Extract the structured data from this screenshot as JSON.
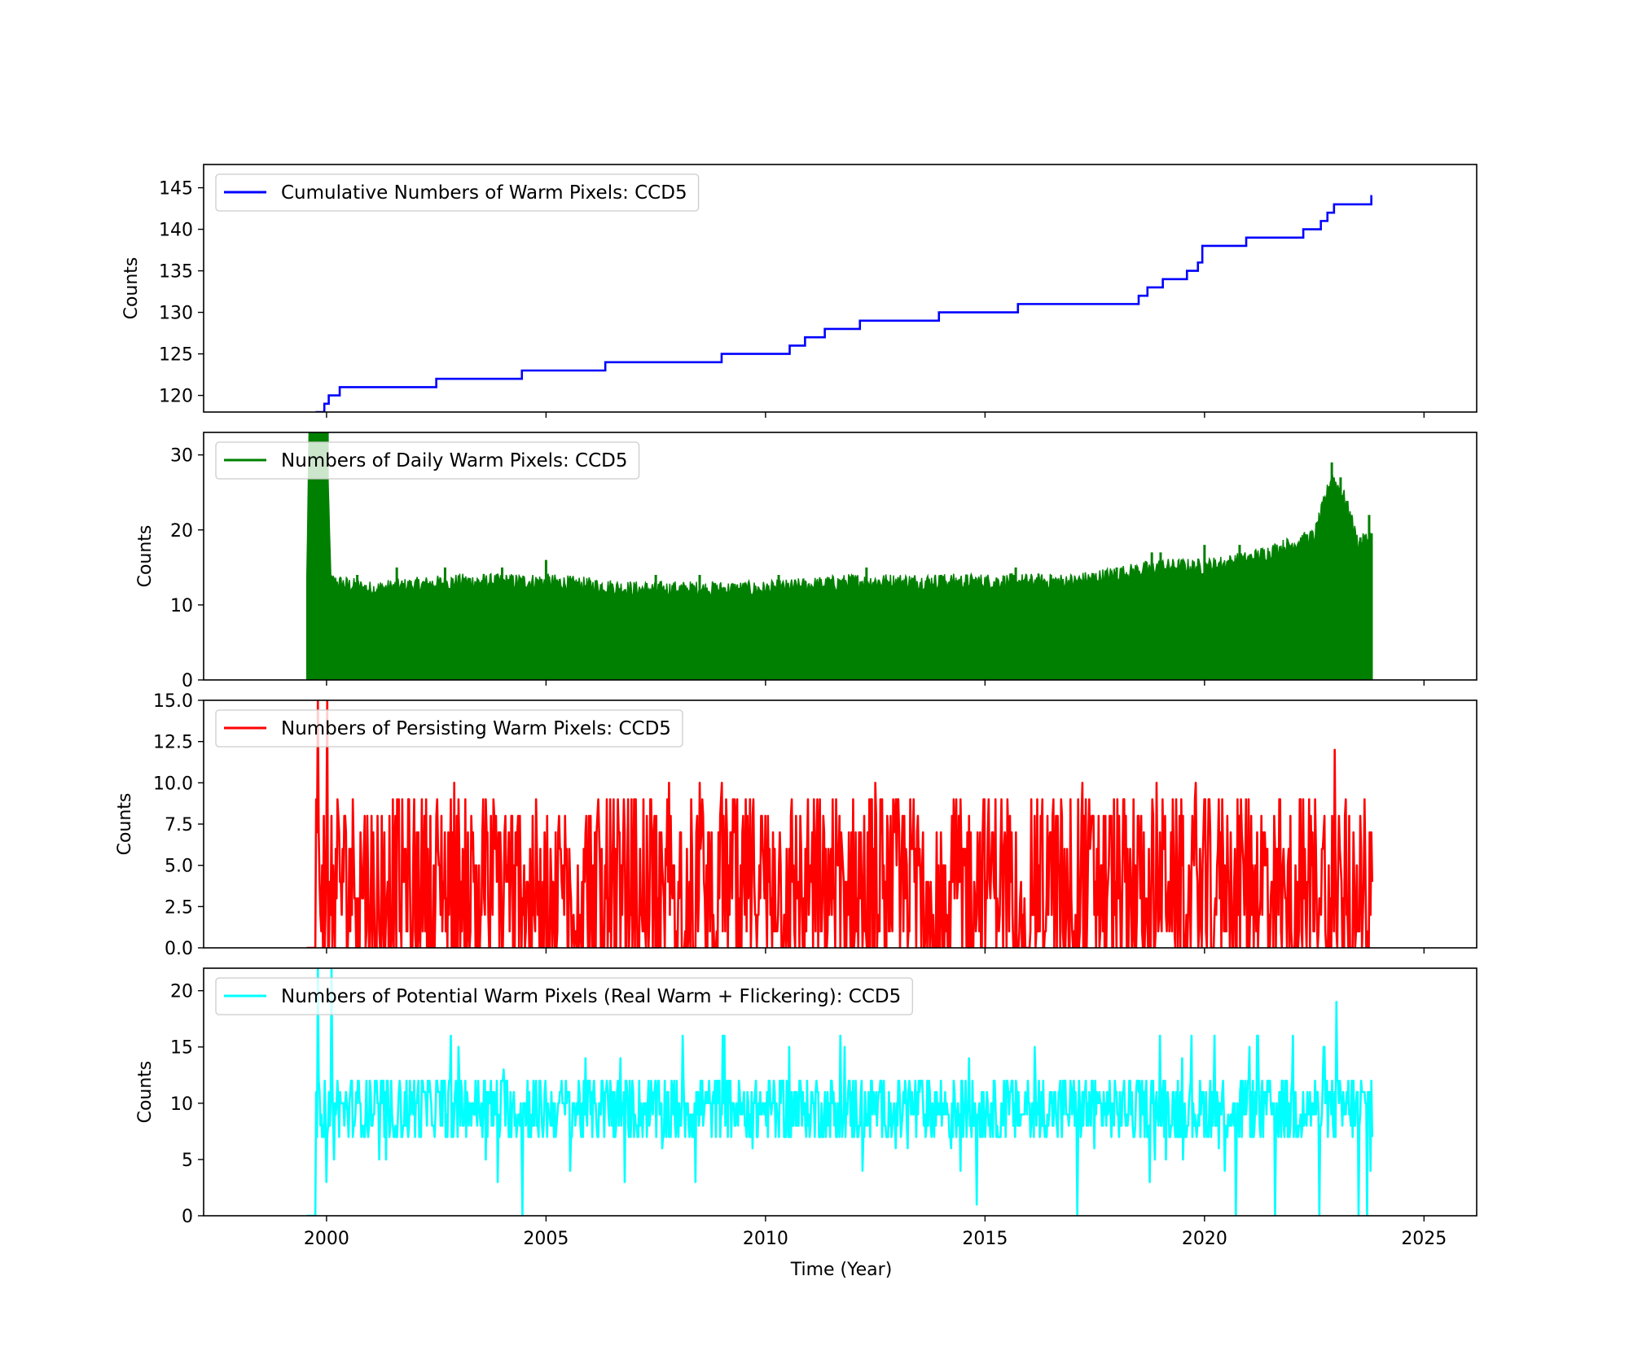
{
  "xlabel": "Time (Year)",
  "x_ticks": [
    2000,
    2005,
    2010,
    2015,
    2020,
    2025
  ],
  "x_range": [
    1997.2,
    2026.2
  ],
  "chart_data": [
    {
      "type": "line",
      "legend": "Cumulative Numbers of Warm Pixels: CCD5",
      "legend_loc": "upper-left",
      "color": "#0000ff",
      "ylabel": "Counts",
      "ylim": [
        118,
        147.8
      ],
      "y_ticks": [
        120,
        125,
        130,
        135,
        140,
        145
      ],
      "y_tick_labels": [
        "120",
        "125",
        "130",
        "135",
        "140",
        "145"
      ],
      "steps": [
        [
          1999.75,
          118
        ],
        [
          1999.95,
          119
        ],
        [
          2000.05,
          120
        ],
        [
          2000.3,
          121
        ],
        [
          2002.5,
          122
        ],
        [
          2004.45,
          123
        ],
        [
          2006.35,
          124
        ],
        [
          2009.0,
          125
        ],
        [
          2010.55,
          126
        ],
        [
          2010.9,
          127
        ],
        [
          2011.35,
          128
        ],
        [
          2012.15,
          129
        ],
        [
          2013.95,
          130
        ],
        [
          2015.75,
          131
        ],
        [
          2018.5,
          132
        ],
        [
          2018.7,
          133
        ],
        [
          2019.05,
          134
        ],
        [
          2019.6,
          135
        ],
        [
          2019.85,
          136
        ],
        [
          2019.95,
          138
        ],
        [
          2020.95,
          139
        ],
        [
          2022.25,
          140
        ],
        [
          2022.65,
          141
        ],
        [
          2022.8,
          142
        ],
        [
          2022.95,
          143
        ],
        [
          2023.8,
          144
        ]
      ],
      "x_end": 2023.82
    },
    {
      "type": "area",
      "legend": "Numbers of Daily Warm Pixels: CCD5",
      "legend_loc": "upper-left",
      "color": "#008000",
      "ylabel": "Counts",
      "ylim": [
        0,
        33
      ],
      "y_ticks": [
        0,
        10,
        20,
        30
      ],
      "y_tick_labels": [
        "0",
        "10",
        "20",
        "30"
      ],
      "x_start": 1999.55,
      "x_end": 2023.82,
      "envelope": [
        [
          1999.55,
          14
        ],
        [
          1999.6,
          33
        ],
        [
          1999.8,
          33
        ],
        [
          2000.0,
          33
        ],
        [
          2000.1,
          14
        ],
        [
          2001.0,
          13
        ],
        [
          2003.0,
          14
        ],
        [
          2005.0,
          14
        ],
        [
          2007.0,
          13
        ],
        [
          2010.0,
          13
        ],
        [
          2012.0,
          14
        ],
        [
          2015.0,
          14
        ],
        [
          2017.0,
          14
        ],
        [
          2018.0,
          15
        ],
        [
          2019.0,
          16
        ],
        [
          2020.0,
          16
        ],
        [
          2021.0,
          17
        ],
        [
          2022.0,
          19
        ],
        [
          2022.5,
          20
        ],
        [
          2022.9,
          28
        ],
        [
          2023.2,
          25
        ],
        [
          2023.5,
          19
        ],
        [
          2023.82,
          20
        ]
      ],
      "spikes": [
        [
          2000.7,
          14
        ],
        [
          2001.6,
          15
        ],
        [
          2002.7,
          15
        ],
        [
          2004.0,
          15
        ],
        [
          2005.0,
          16
        ],
        [
          2007.5,
          14
        ],
        [
          2008.5,
          14
        ],
        [
          2010.3,
          14
        ],
        [
          2012.3,
          15
        ],
        [
          2014.0,
          14
        ],
        [
          2015.7,
          15
        ],
        [
          2016.5,
          14
        ],
        [
          2018.0,
          15
        ],
        [
          2018.8,
          17
        ],
        [
          2019.0,
          17
        ],
        [
          2019.5,
          16
        ],
        [
          2020.0,
          18
        ],
        [
          2020.8,
          18
        ],
        [
          2021.3,
          17
        ],
        [
          2021.8,
          17
        ],
        [
          2022.2,
          19
        ],
        [
          2022.6,
          20
        ],
        [
          2022.9,
          29
        ],
        [
          2023.1,
          27
        ],
        [
          2023.35,
          22
        ],
        [
          2023.55,
          19
        ],
        [
          2023.75,
          22
        ]
      ]
    },
    {
      "type": "line",
      "legend": "Numbers of Persisting Warm Pixels: CCD5",
      "legend_loc": "upper-left",
      "color": "#ff0000",
      "ylabel": "Counts",
      "ylim": [
        0,
        15
      ],
      "y_ticks": [
        0,
        2.5,
        5,
        7.5,
        10,
        12.5,
        15
      ],
      "y_tick_labels": [
        "0.0",
        "2.5",
        "5.0",
        "7.5",
        "10.0",
        "12.5",
        "15.0"
      ],
      "x_start": 1999.55,
      "x_end": 2023.82,
      "mean": 4.5,
      "spread": 5,
      "peaks": [
        [
          1999.8,
          15
        ],
        [
          2000.0,
          15
        ],
        [
          2002.9,
          10
        ],
        [
          2003.8,
          9
        ],
        [
          2007.8,
          10
        ],
        [
          2008.5,
          10
        ],
        [
          2009.0,
          10
        ],
        [
          2012.5,
          10
        ],
        [
          2017.2,
          10
        ],
        [
          2018.9,
          10
        ],
        [
          2019.8,
          10
        ],
        [
          2021.0,
          9
        ],
        [
          2022.95,
          12
        ],
        [
          2023.2,
          9
        ],
        [
          2023.8,
          7
        ]
      ]
    },
    {
      "type": "line",
      "legend": "Numbers of Potential Warm Pixels (Real Warm + Flickering): CCD5",
      "legend_loc": "upper-left",
      "color": "#00ffff",
      "ylabel": "Counts",
      "ylim": [
        0,
        22
      ],
      "y_ticks": [
        0,
        5,
        10,
        15,
        20
      ],
      "y_tick_labels": [
        "0",
        "5",
        "10",
        "15",
        "20"
      ],
      "x_start": 1999.55,
      "x_end": 2023.82,
      "mean": 9.5,
      "spread": 3,
      "peaks": [
        [
          1999.6,
          0
        ],
        [
          1999.7,
          22
        ],
        [
          1999.8,
          22
        ],
        [
          2000.1,
          22
        ],
        [
          2004.45,
          0
        ],
        [
          2014.8,
          1
        ],
        [
          2017.1,
          0
        ],
        [
          2020.7,
          0
        ],
        [
          2021.2,
          16
        ],
        [
          2021.6,
          0
        ],
        [
          2022.0,
          16
        ],
        [
          2022.6,
          0
        ],
        [
          2023.0,
          19
        ],
        [
          2023.5,
          0
        ],
        [
          2023.7,
          0
        ],
        [
          2023.8,
          12
        ]
      ]
    }
  ]
}
